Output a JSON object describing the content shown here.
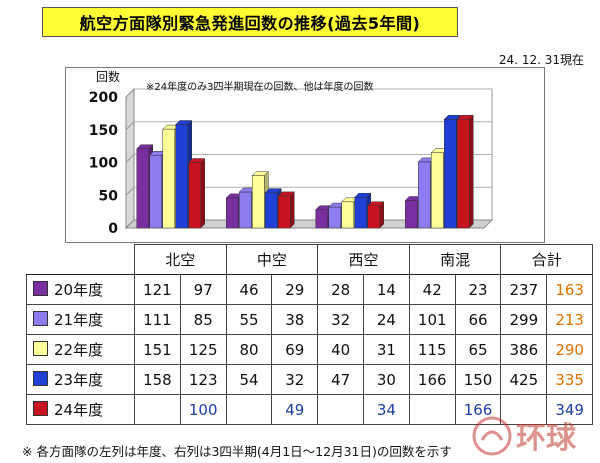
{
  "title": "航空方面隊別緊急発進回数の推移(過去5年間)",
  "date": "24. 12. 31現在",
  "chart_data": {
    "type": "bar",
    "ylabel": "回数",
    "note": "※24年度のみ3四半期現在の回数、他は年度の回数",
    "categories": [
      "北空",
      "中空",
      "西空",
      "南混"
    ],
    "ylim": [
      0,
      200
    ],
    "yticks": [
      0,
      50,
      100,
      150,
      200
    ],
    "series": [
      {
        "name": "20年度",
        "color": "#7a2fa0",
        "values": [
          121,
          46,
          28,
          42
        ]
      },
      {
        "name": "21年度",
        "color": "#8d7cf0",
        "values": [
          111,
          55,
          32,
          101
        ]
      },
      {
        "name": "22年度",
        "color": "#ffff99",
        "values": [
          151,
          80,
          40,
          115
        ]
      },
      {
        "name": "23年度",
        "color": "#1f3fd6",
        "values": [
          158,
          54,
          47,
          166
        ]
      },
      {
        "name": "24年度",
        "color": "#c81420",
        "values": [
          100,
          49,
          34,
          166
        ]
      }
    ]
  },
  "table": {
    "headers": [
      "北空",
      "中空",
      "西空",
      "南混",
      "合計"
    ],
    "rows": [
      {
        "label": "20年度",
        "color": "#7a2fa0",
        "cells": [
          "121",
          "97",
          "46",
          "29",
          "28",
          "14",
          "42",
          "23",
          "237",
          "163"
        ]
      },
      {
        "label": "21年度",
        "color": "#8d7cf0",
        "cells": [
          "111",
          "85",
          "55",
          "38",
          "32",
          "24",
          "101",
          "66",
          "299",
          "213"
        ]
      },
      {
        "label": "22年度",
        "color": "#ffff99",
        "cells": [
          "151",
          "125",
          "80",
          "69",
          "40",
          "31",
          "115",
          "65",
          "386",
          "290"
        ]
      },
      {
        "label": "23年度",
        "color": "#1f3fd6",
        "cells": [
          "158",
          "123",
          "54",
          "32",
          "47",
          "30",
          "166",
          "150",
          "425",
          "335"
        ]
      },
      {
        "label": "24年度",
        "color": "#c81420",
        "cells": [
          "",
          "100",
          "",
          "49",
          "",
          "34",
          "",
          "166",
          "",
          "349"
        ]
      }
    ]
  },
  "footnote": "※ 各方面隊の左列は年度、右列は3四半期(4月1日〜12月31日)の回数を示す",
  "watermark": "环球"
}
